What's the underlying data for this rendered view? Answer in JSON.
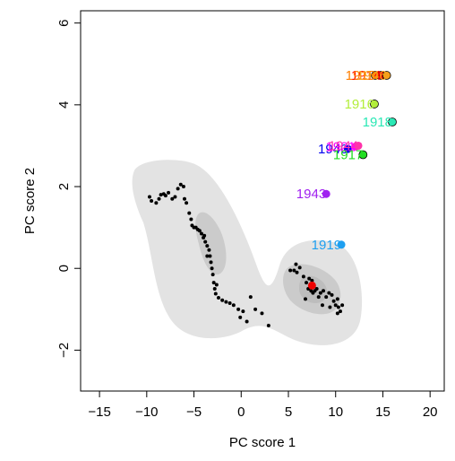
{
  "chart_data": {
    "type": "scatter",
    "xlabel": "PC score 1",
    "ylabel": "PC score 2",
    "xlim": [
      -17,
      21.5
    ],
    "ylim": [
      -3.0,
      6.3
    ],
    "x_ticks": [
      "−15",
      "−10",
      "−5",
      "0",
      "5",
      "10",
      "15",
      "20"
    ],
    "x_tick_values": [
      -15,
      -10,
      -5,
      0,
      5,
      10,
      15,
      20
    ],
    "y_ticks": [
      "−2",
      "0",
      "2",
      "4",
      "6"
    ],
    "y_tick_values": [
      -2,
      0,
      2,
      4,
      6
    ],
    "density": {
      "outer_color": "#e3e3e3",
      "mid_color": "#cbcbcb",
      "inner_color": "#bdbdbd"
    },
    "background_points": [
      [
        -9.7,
        1.75
      ],
      [
        -9.5,
        1.65
      ],
      [
        -9.0,
        1.6
      ],
      [
        -8.7,
        1.7
      ],
      [
        -8.5,
        1.8
      ],
      [
        -8.2,
        1.82
      ],
      [
        -8.0,
        1.78
      ],
      [
        -7.7,
        1.85
      ],
      [
        -7.3,
        1.7
      ],
      [
        -7.0,
        1.75
      ],
      [
        -6.7,
        1.95
      ],
      [
        -6.4,
        2.05
      ],
      [
        -6.1,
        2.0
      ],
      [
        -6.0,
        1.7
      ],
      [
        -5.8,
        1.6
      ],
      [
        -5.5,
        1.35
      ],
      [
        -5.3,
        1.2
      ],
      [
        -5.2,
        1.05
      ],
      [
        -5.0,
        1.0
      ],
      [
        -4.8,
        1.0
      ],
      [
        -4.6,
        0.95
      ],
      [
        -4.4,
        0.92
      ],
      [
        -4.2,
        0.85
      ],
      [
        -4.0,
        0.75
      ],
      [
        -3.8,
        0.65
      ],
      [
        -3.6,
        0.55
      ],
      [
        -3.4,
        0.45
      ],
      [
        -3.3,
        0.3
      ],
      [
        -3.2,
        0.15
      ],
      [
        -3.1,
        0.0
      ],
      [
        -3.0,
        -0.15
      ],
      [
        -2.9,
        -0.35
      ],
      [
        -2.8,
        -0.5
      ],
      [
        -2.7,
        -0.62
      ],
      [
        -2.4,
        -0.72
      ],
      [
        -2.0,
        -0.78
      ],
      [
        -1.6,
        -0.82
      ],
      [
        -1.2,
        -0.85
      ],
      [
        -0.8,
        -0.9
      ],
      [
        -0.3,
        -1.0
      ],
      [
        0.2,
        -1.05
      ],
      [
        -0.1,
        -1.2
      ],
      [
        0.6,
        -1.3
      ],
      [
        1.0,
        -0.7
      ],
      [
        1.5,
        -1.0
      ],
      [
        2.2,
        -1.1
      ],
      [
        2.9,
        -1.4
      ],
      [
        -2.6,
        -0.4
      ],
      [
        -3.6,
        0.3
      ],
      [
        -3.9,
        0.8
      ],
      [
        5.2,
        -0.05
      ],
      [
        5.6,
        -0.05
      ],
      [
        5.9,
        -0.1
      ],
      [
        6.2,
        0.02
      ],
      [
        6.6,
        -0.2
      ],
      [
        6.9,
        -0.35
      ],
      [
        7.1,
        -0.5
      ],
      [
        7.4,
        -0.55
      ],
      [
        7.6,
        -0.6
      ],
      [
        7.8,
        -0.55
      ],
      [
        8.0,
        -0.5
      ],
      [
        8.2,
        -0.7
      ],
      [
        8.4,
        -0.6
      ],
      [
        8.7,
        -0.55
      ],
      [
        9.0,
        -0.7
      ],
      [
        9.3,
        -0.6
      ],
      [
        9.6,
        -0.65
      ],
      [
        9.8,
        -0.8
      ],
      [
        10.0,
        -0.9
      ],
      [
        10.2,
        -0.75
      ],
      [
        10.3,
        -0.95
      ],
      [
        10.5,
        -1.05
      ],
      [
        10.7,
        -0.9
      ],
      [
        10.2,
        -1.1
      ],
      [
        7.2,
        -0.25
      ],
      [
        6.8,
        -0.75
      ],
      [
        7.5,
        -0.3
      ],
      [
        8.6,
        -0.9
      ],
      [
        9.4,
        -0.95
      ],
      [
        5.8,
        0.1
      ]
    ],
    "highlight_points": [
      {
        "label": "1914",
        "x": 14.8,
        "y": 4.72,
        "color": "#ff0000",
        "edge": true
      },
      {
        "label": "1915",
        "x": 14.2,
        "y": 4.72,
        "color": "#ff7f00",
        "edge": true
      },
      {
        "label": "1946",
        "x": 15.4,
        "y": 4.72,
        "color": "#f6a01a",
        "edge": true
      },
      {
        "label": "1916",
        "x": 14.1,
        "y": 4.02,
        "color": "#b3ee3a",
        "edge": true
      },
      {
        "label": "1918",
        "x": 16.0,
        "y": 3.58,
        "color": "#2be8b5",
        "edge": true
      },
      {
        "label": "1940",
        "x": 11.3,
        "y": 2.92,
        "color": "#0000ee",
        "edge": false
      },
      {
        "label": "1921",
        "x": 12.1,
        "y": 2.98,
        "color": "#ff00ff",
        "edge": false
      },
      {
        "label": "1944",
        "x": 12.4,
        "y": 3.0,
        "color": "#ff33aa",
        "edge": false
      },
      {
        "label": "1917",
        "x": 12.9,
        "y": 2.78,
        "color": "#22dd22",
        "edge": true
      },
      {
        "label": "1943",
        "x": 9.0,
        "y": 1.82,
        "color": "#a020f0",
        "edge": false
      },
      {
        "label": "1919",
        "x": 10.6,
        "y": 0.58,
        "color": "#1e9ff0",
        "edge": false
      },
      {
        "label": "",
        "x": 7.5,
        "y": -0.42,
        "color": "#ee0000",
        "edge": false
      }
    ]
  }
}
